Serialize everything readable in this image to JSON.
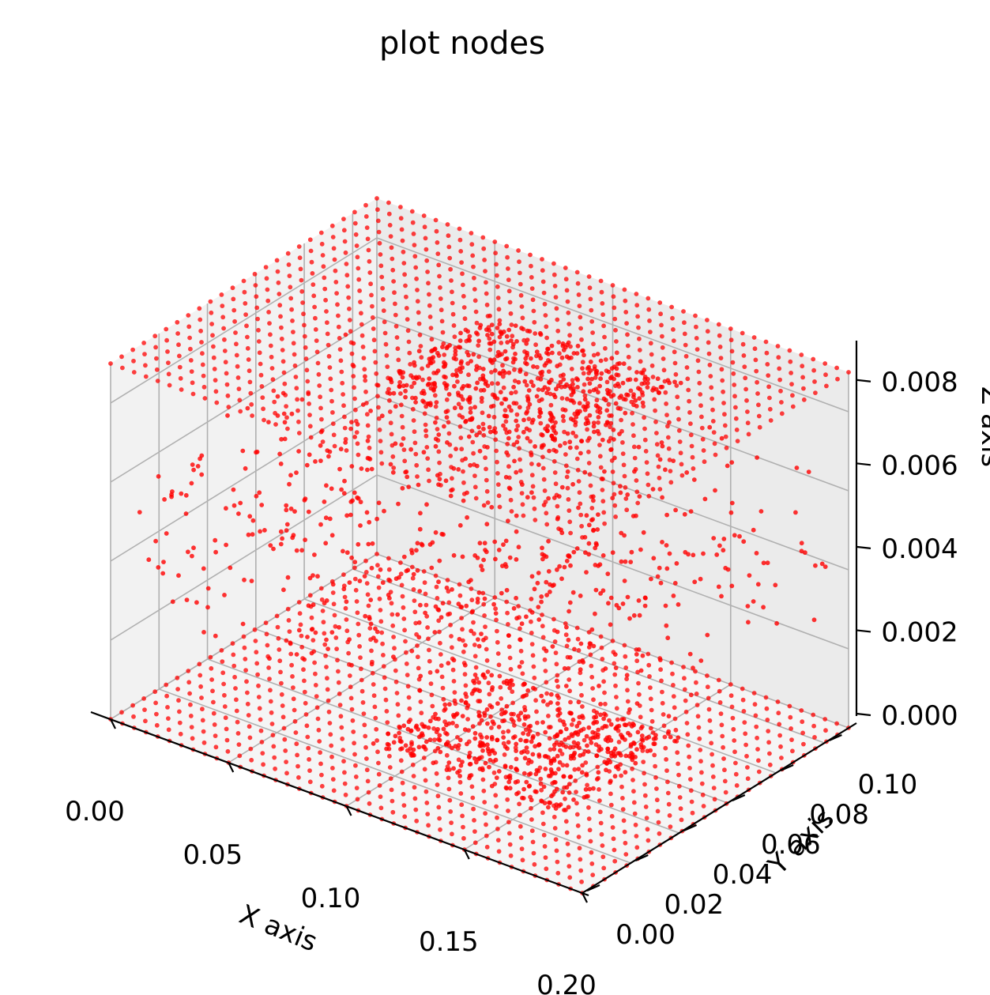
{
  "chart_data": {
    "type": "scatter",
    "projection": "3d",
    "title": "plot nodes",
    "xlabel": "X axis",
    "ylabel": "Y axis",
    "zlabel": "Z axis",
    "xlim": [
      0.0,
      0.2
    ],
    "ylim": [
      0.0,
      0.11
    ],
    "zlim": [
      0.0,
      0.009
    ],
    "x_ticks": [
      "0.00",
      "0.05",
      "0.10",
      "0.15",
      "0.20"
    ],
    "y_ticks": [
      "0.00",
      "0.02",
      "0.04",
      "0.06",
      "0.08",
      "0.10"
    ],
    "z_ticks": [
      "0.000",
      "0.002",
      "0.004",
      "0.006",
      "0.008"
    ],
    "grid": true,
    "marker_color": "#ff0000",
    "series": [
      {
        "description_layers": [
          {
            "z": 0.0,
            "x_range": [
              0.0,
              0.2
            ],
            "y_range": [
              0.0,
              0.11
            ],
            "refined_region": {
              "x": [
                0.08,
                0.16
              ],
              "y": [
                0.03,
                0.08
              ]
            }
          },
          {
            "z": 0.0045,
            "x_range": [
              0.0,
              0.2
            ],
            "y_range": [
              0.0,
              0.11
            ],
            "scattered": true
          },
          {
            "z": 0.009,
            "x_range": [
              0.0,
              0.2
            ],
            "y_range": [
              0.0,
              0.11
            ],
            "refined_region": {
              "x": [
                0.08,
                0.16
              ],
              "y": [
                0.03,
                0.08
              ]
            }
          }
        ]
      }
    ]
  },
  "colors": {
    "pane_left": "#f2f2f2",
    "pane_right": "#ebebeb",
    "pane_floor": "#f5f5f5",
    "grid": "#b0b0b0",
    "axis": "#000000",
    "marker": "#ff0000"
  }
}
